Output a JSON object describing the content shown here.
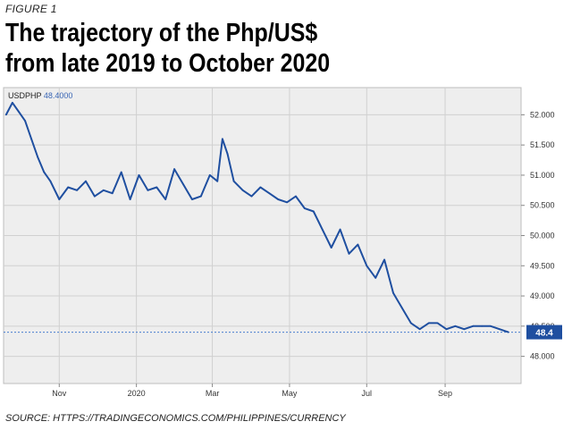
{
  "figure_label": "FIGURE 1",
  "title_line1": "The trajectory of the Php/US$",
  "title_line2": "from late 2019 to October 2020",
  "source": "SOURCE: HTTPS://TRADINGECONOMICS.COM/PHILIPPINES/CURRENCY",
  "chart_data": {
    "type": "line",
    "ticker": "USDPHP",
    "ticker_value": "48.4000",
    "current_badge": "48.4",
    "x_ticks": [
      "Nov",
      "2020",
      "Mar",
      "May",
      "Jul",
      "Sep"
    ],
    "y_ticks": [
      "48.000",
      "48.500",
      "49.000",
      "49.500",
      "50.000",
      "50.500",
      "51.000",
      "51.500",
      "52.000"
    ],
    "ylim": [
      47.55,
      52.45
    ],
    "grid": true,
    "colors": {
      "line": "#1f4fa0",
      "background": "#eeeeee",
      "badge": "#1f4fa0"
    },
    "series": [
      {
        "x": [
          "2019-09-20",
          "2019-09-25",
          "2019-09-30",
          "2019-10-05",
          "2019-10-10",
          "2019-10-15",
          "2019-10-20",
          "2019-10-25",
          "2019-11-01",
          "2019-11-08",
          "2019-11-15",
          "2019-11-22",
          "2019-11-29",
          "2019-12-06",
          "2019-12-13",
          "2019-12-20",
          "2019-12-27",
          "2020-01-03",
          "2020-01-10",
          "2020-01-17",
          "2020-01-24",
          "2020-01-31",
          "2020-02-07",
          "2020-02-14",
          "2020-02-21",
          "2020-02-28",
          "2020-03-05",
          "2020-03-09",
          "2020-03-13",
          "2020-03-18",
          "2020-03-25",
          "2020-04-01",
          "2020-04-08",
          "2020-04-15",
          "2020-04-22",
          "2020-04-29",
          "2020-05-06",
          "2020-05-13",
          "2020-05-20",
          "2020-05-27",
          "2020-06-03",
          "2020-06-10",
          "2020-06-17",
          "2020-06-24",
          "2020-07-01",
          "2020-07-08",
          "2020-07-15",
          "2020-07-22",
          "2020-07-29",
          "2020-08-05",
          "2020-08-12",
          "2020-08-19",
          "2020-08-26",
          "2020-09-02",
          "2020-09-09",
          "2020-09-16",
          "2020-09-23",
          "2020-09-30",
          "2020-10-07",
          "2020-10-14",
          "2020-10-21"
        ],
        "y": [
          52.0,
          52.2,
          52.05,
          51.9,
          51.6,
          51.3,
          51.05,
          50.9,
          50.6,
          50.8,
          50.75,
          50.9,
          50.65,
          50.75,
          50.7,
          51.05,
          50.6,
          51.0,
          50.75,
          50.8,
          50.6,
          51.1,
          50.85,
          50.6,
          50.65,
          51.0,
          50.9,
          51.6,
          51.35,
          50.9,
          50.75,
          50.65,
          50.8,
          50.7,
          50.6,
          50.55,
          50.65,
          50.45,
          50.4,
          50.1,
          49.8,
          50.1,
          49.7,
          49.85,
          49.5,
          49.3,
          49.6,
          49.05,
          48.8,
          48.55,
          48.45,
          48.55,
          48.55,
          48.45,
          48.5,
          48.45,
          48.5,
          48.5,
          48.5,
          48.45,
          48.4
        ]
      }
    ]
  }
}
